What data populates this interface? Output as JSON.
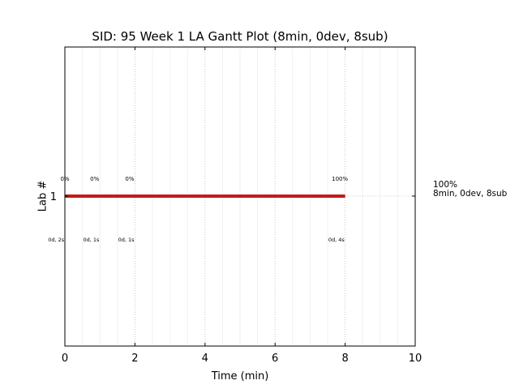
{
  "chart_data": {
    "type": "bar",
    "title": "SID: 95 Week 1 LA Gantt Plot (8min, 0dev, 8sub)",
    "xlabel": "Time (min)",
    "ylabel": "Lab #",
    "xlim": [
      0,
      10
    ],
    "xticks": [
      "0",
      "2",
      "4",
      "6",
      "8",
      "10"
    ],
    "major_grid_x": [
      2,
      4,
      6,
      8
    ],
    "minor_grid_step": 0.5,
    "categories": [
      "1"
    ],
    "bar_color": "#c21b1b",
    "bar": {
      "lab": 1,
      "start": 0,
      "end": 8
    },
    "guide_line_end": 10,
    "percent_annotations": [
      {
        "x": 0,
        "label": "0%"
      },
      {
        "x": 0.85,
        "label": "0%"
      },
      {
        "x": 1.85,
        "label": "0%"
      },
      {
        "x": 7.85,
        "label": "100%"
      }
    ],
    "event_annotations": [
      {
        "x": -0.25,
        "label": "0d, 2s"
      },
      {
        "x": 0.75,
        "label": "0d, 1s"
      },
      {
        "x": 1.75,
        "label": "0d, 1s"
      },
      {
        "x": 7.75,
        "label": "0d, 4s"
      }
    ],
    "right_summary": {
      "line1": "100%",
      "line2": "8min, 0dev, 8sub"
    }
  }
}
